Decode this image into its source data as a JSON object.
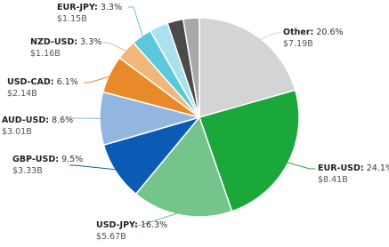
{
  "chart_data": {
    "type": "pie",
    "categories": [
      "Other",
      "EUR-USD",
      "USD-JPY",
      "GBP-USD",
      "AUD-USD",
      "USD-CAD",
      "NZD-USD",
      "EUR-JPY",
      null,
      null,
      null
    ],
    "values": [
      20.6,
      24.1,
      16.3,
      9.5,
      8.6,
      6.1,
      3.3,
      3.3,
      3.0,
      2.6,
      2.6
    ],
    "value_labels": [
      "20.6%",
      "24.1%",
      "16.3%",
      "9.5%",
      "8.6%",
      "6.1%",
      "3.3%",
      "3.3%",
      null,
      null,
      null
    ],
    "amounts": [
      7.19,
      8.41,
      5.67,
      3.33,
      3.01,
      2.14,
      1.16,
      1.15,
      null,
      null,
      null
    ],
    "amount_labels": [
      "$7.19B",
      "$8.41B",
      "$5.67B",
      "$3.33B",
      "$3.01B",
      "$2.14B",
      "$1.16B",
      "$1.15B",
      null,
      null,
      null
    ],
    "colors": [
      "#d4d4d4",
      "#1ba83a",
      "#74c48b",
      "#0b5bb5",
      "#92b6e0",
      "#e88a2a",
      "#f0b77b",
      "#5cc8dc",
      "#a9e2ec",
      "#4a4a4a",
      "#a8a8a8"
    ]
  }
}
